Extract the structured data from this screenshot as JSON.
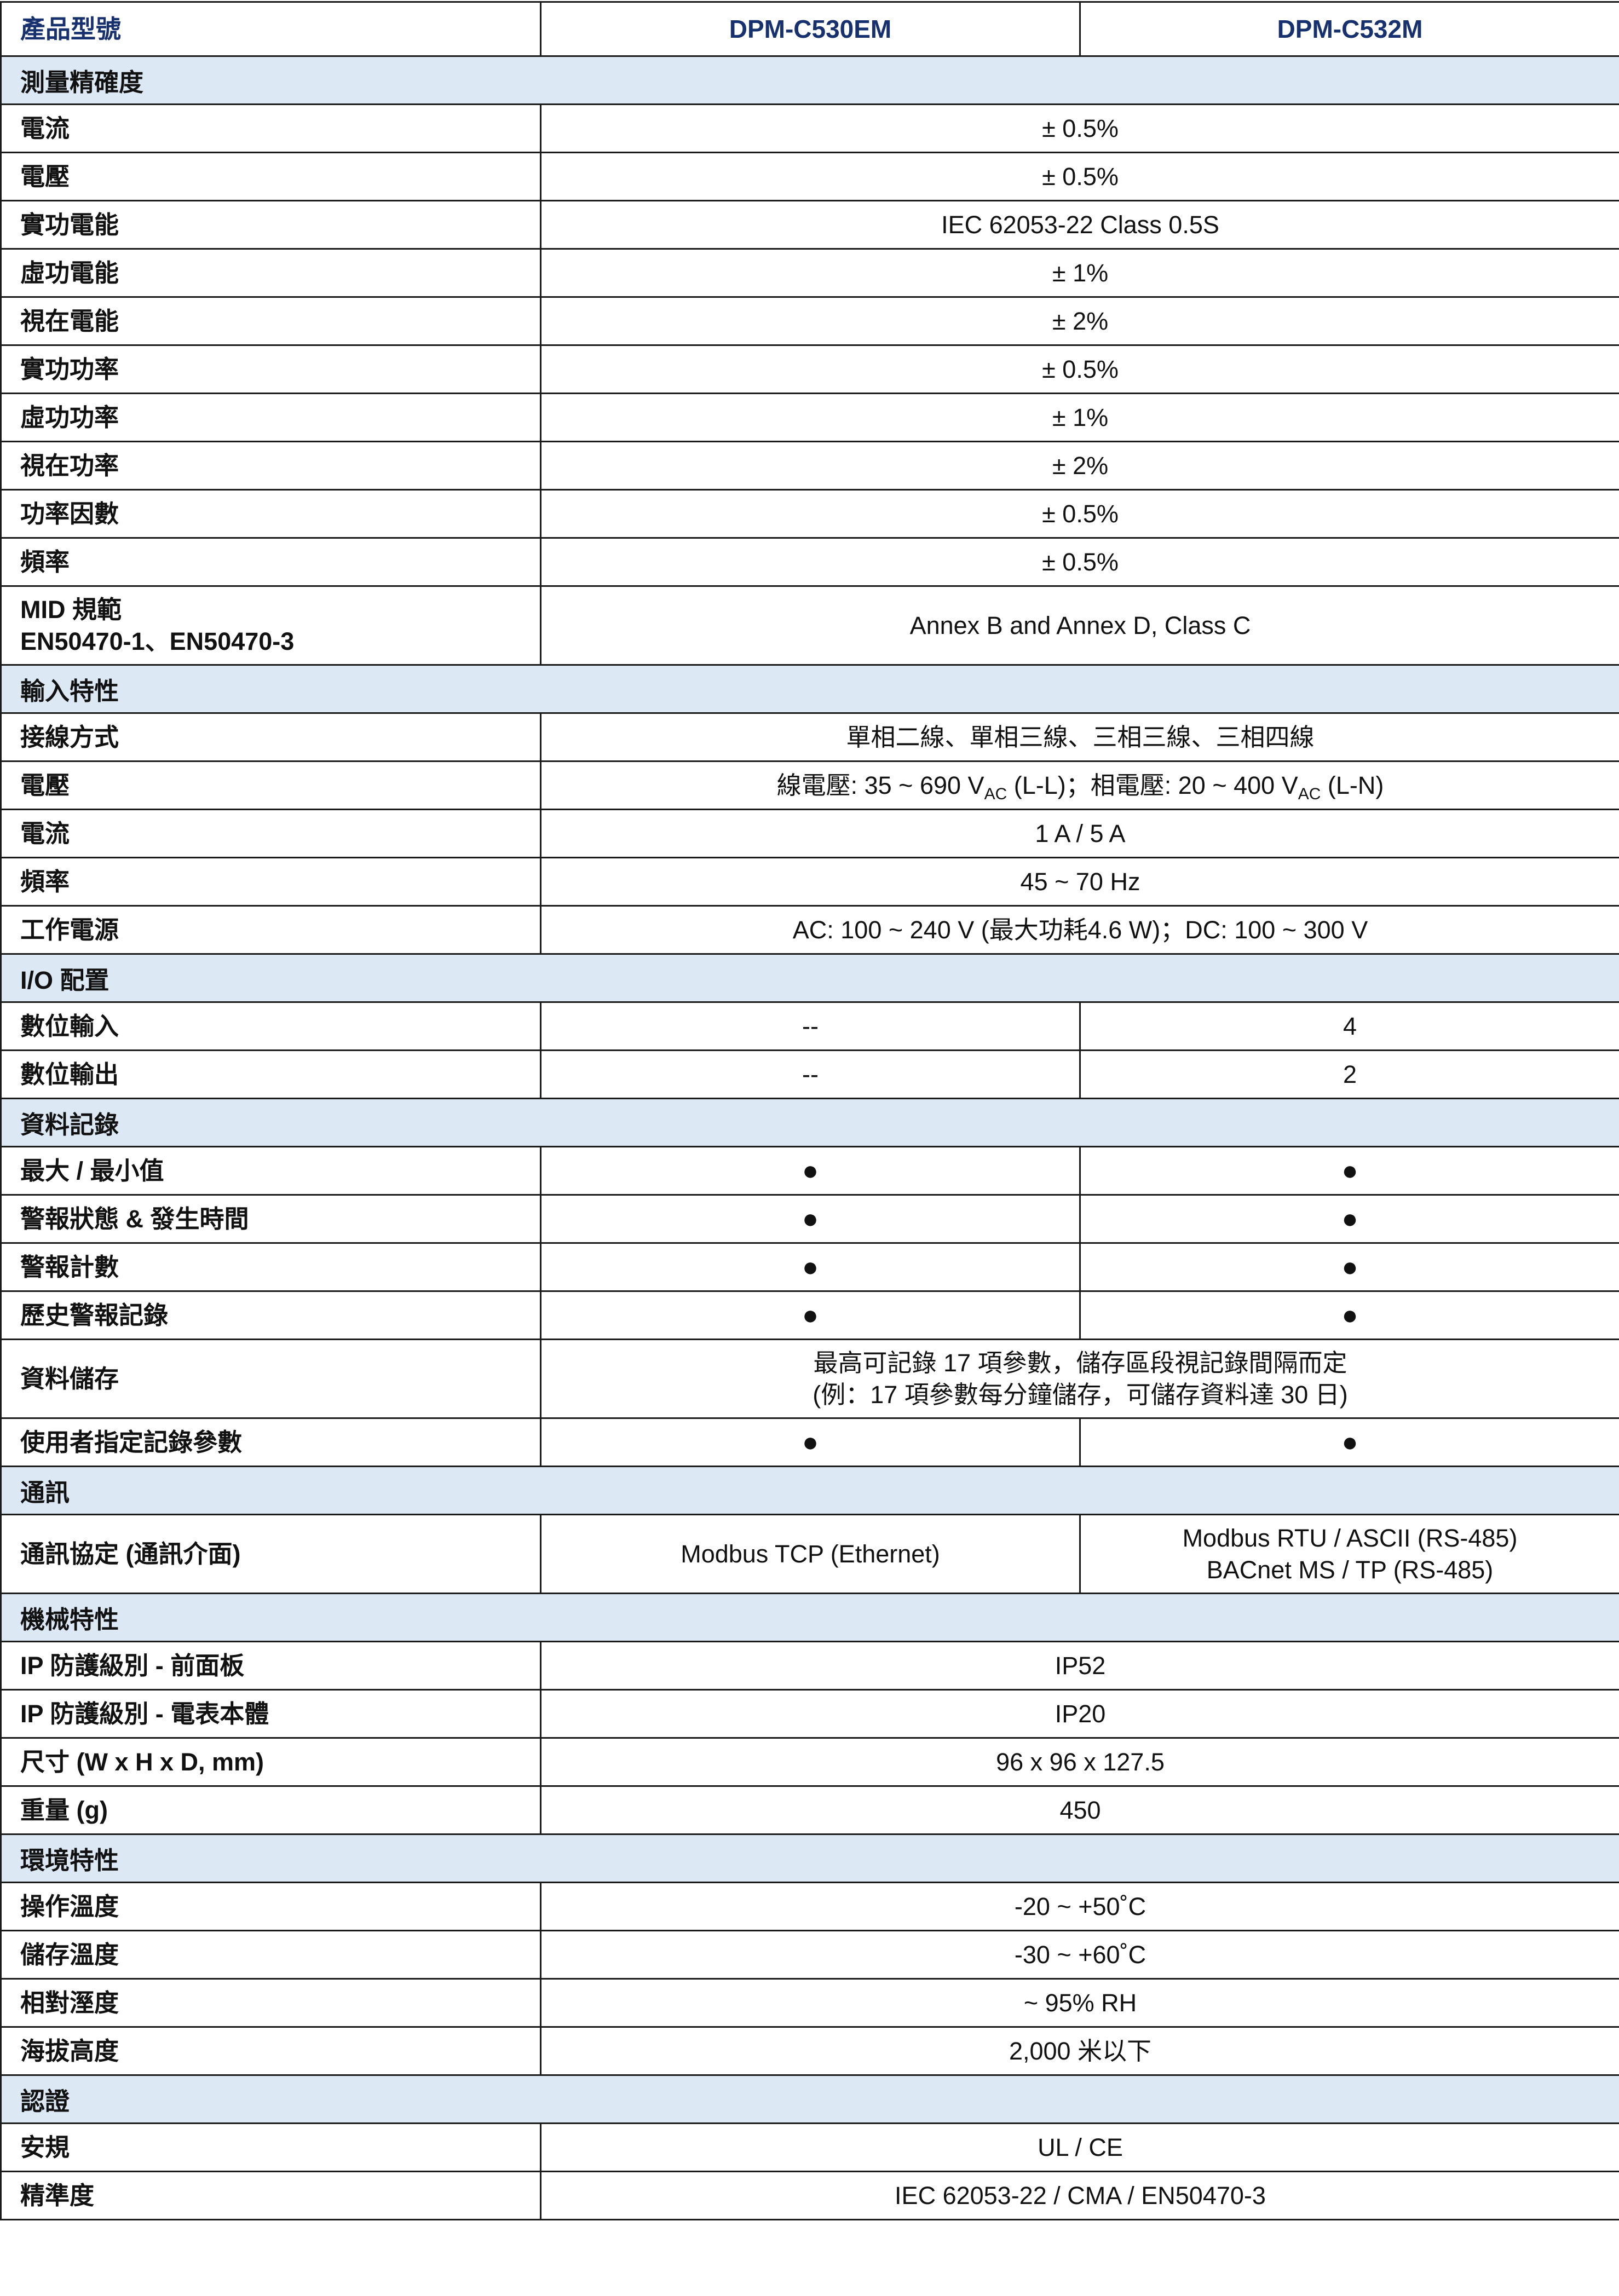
{
  "header": {
    "label": "產品型號",
    "models": [
      "DPM-C530EM",
      "DPM-C532M"
    ]
  },
  "rows": [
    {
      "type": "section",
      "label": "測量精確度"
    },
    {
      "type": "span",
      "label": "電流",
      "value": "± 0.5%"
    },
    {
      "type": "span",
      "label": "電壓",
      "value": "± 0.5%"
    },
    {
      "type": "span",
      "label": "實功電能",
      "value": "IEC 62053-22 Class 0.5S"
    },
    {
      "type": "span",
      "label": "虛功電能",
      "value": "± 1%"
    },
    {
      "type": "span",
      "label": "視在電能",
      "value": "± 2%"
    },
    {
      "type": "span",
      "label": "實功功率",
      "value": "± 0.5%"
    },
    {
      "type": "span",
      "label": "虛功功率",
      "value": "± 1%"
    },
    {
      "type": "span",
      "label": "視在功率",
      "value": "± 2%"
    },
    {
      "type": "span",
      "label": "功率因數",
      "value": "± 0.5%"
    },
    {
      "type": "span",
      "label": "頻率",
      "value": "± 0.5%"
    },
    {
      "type": "span",
      "tall": true,
      "label_lines": [
        "MID 規範",
        "EN50470-1、EN50470-3"
      ],
      "value": "Annex B and Annex D, Class C"
    },
    {
      "type": "section",
      "label": "輸入特性"
    },
    {
      "type": "span",
      "label": "接線方式",
      "value": "單相二線、單相三線、三相三線、三相四線"
    },
    {
      "type": "span",
      "label": "電壓",
      "segments": [
        {
          "text": "線電壓: 35 ~ 690 V"
        },
        {
          "sub": "AC"
        },
        {
          "text": " (L-L)；相電壓: 20 ~ 400 V"
        },
        {
          "sub": "AC"
        },
        {
          "text": " (L-N)"
        }
      ]
    },
    {
      "type": "span",
      "label": "電流",
      "value": "1 A / 5 A"
    },
    {
      "type": "span",
      "label": "頻率",
      "value": "45 ~ 70 Hz"
    },
    {
      "type": "span",
      "label": "工作電源",
      "value": "AC: 100 ~ 240 V (最大功耗4.6 W)；DC: 100 ~ 300 V"
    },
    {
      "type": "section",
      "label": "I/O 配置"
    },
    {
      "type": "split",
      "label": "數位輸入",
      "values": [
        "--",
        "4"
      ]
    },
    {
      "type": "split",
      "label": "數位輸出",
      "values": [
        "--",
        "2"
      ]
    },
    {
      "type": "section",
      "label": "資料記錄"
    },
    {
      "type": "split",
      "label": "最大 / 最小值",
      "values": [
        "●",
        "●"
      ]
    },
    {
      "type": "split",
      "label": "警報狀態 & 發生時間",
      "values": [
        "●",
        "●"
      ]
    },
    {
      "type": "split",
      "label": "警報計數",
      "values": [
        "●",
        "●"
      ]
    },
    {
      "type": "split",
      "label": "歷史警報記錄",
      "values": [
        "●",
        "●"
      ]
    },
    {
      "type": "span",
      "tall": true,
      "label": "資料儲存",
      "value_lines": [
        "最高可記錄 17 項參數，儲存區段視記錄間隔而定",
        "(例：17 項參數每分鐘儲存，可儲存資料達 30 日)"
      ]
    },
    {
      "type": "split",
      "label": "使用者指定記錄參數",
      "values": [
        "●",
        "●"
      ]
    },
    {
      "type": "section",
      "label": "通訊"
    },
    {
      "type": "split",
      "tall": true,
      "label": "通訊協定 (通訊介面)",
      "values": [
        "Modbus TCP (Ethernet)"
      ],
      "value_lines_2": [
        "Modbus RTU / ASCII (RS-485)",
        "BACnet MS / TP (RS-485)"
      ]
    },
    {
      "type": "section",
      "label": "機械特性"
    },
    {
      "type": "span",
      "label": "IP 防護級別 - 前面板",
      "value": "IP52"
    },
    {
      "type": "span",
      "label": "IP 防護級別 - 電表本體",
      "value": "IP20"
    },
    {
      "type": "span",
      "label": "尺寸 (W x H x D, mm)",
      "value": "96 x 96 x 127.5"
    },
    {
      "type": "span",
      "label": "重量 (g)",
      "value": "450"
    },
    {
      "type": "section",
      "label": "環境特性"
    },
    {
      "type": "span",
      "label": "操作溫度",
      "value": "-20 ~ +50˚C"
    },
    {
      "type": "span",
      "label": "儲存溫度",
      "value": "-30 ~ +60˚C"
    },
    {
      "type": "span",
      "label": "相對溼度",
      "value": "~ 95% RH"
    },
    {
      "type": "span",
      "label": "海拔高度",
      "value": "2,000 米以下"
    },
    {
      "type": "section",
      "label": "認證"
    },
    {
      "type": "span",
      "label": "安規",
      "value": "UL / CE"
    },
    {
      "type": "span",
      "label": "精準度",
      "value": "IEC 62053-22 / CMA / EN50470-3"
    }
  ]
}
